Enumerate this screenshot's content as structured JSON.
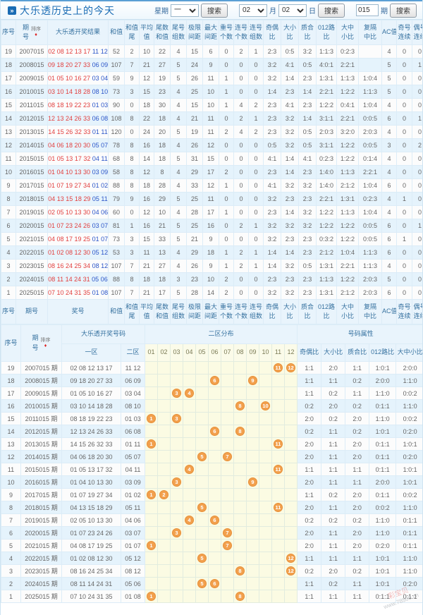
{
  "page": {
    "title": "大乐透历史上的今天",
    "title_icon": "»",
    "watermark": {
      "brand": "彩宝贝",
      "url": "www.78500.cn"
    }
  },
  "toolbar": {
    "week_label": "星期",
    "week_value": "一",
    "search_label": "搜索",
    "month_value": "02",
    "month_label": "月",
    "day_value": "02",
    "day_label": "日",
    "issue_value": "015",
    "issue_label": "期"
  },
  "table1": {
    "sort_label": "排序",
    "sort_icon": "♦",
    "headers": [
      "序号",
      "期|号",
      "大乐透开奖结果",
      "和值",
      "和值|尾",
      "平均|值",
      "尾数|和值",
      "尾号|组数",
      "极限|间距",
      "最大|间距",
      "重号|个数",
      "连号|个数",
      "连号|组数",
      "奇偶|比",
      "大小|比",
      "质合|比",
      "012路|比",
      "大中|小比",
      "复隔|中比",
      "AC值",
      "奇号|连续",
      "偶号|连续"
    ],
    "footer_headers": [
      "序号",
      "期号",
      "奖号",
      "和值",
      "和值|尾",
      "平均|值",
      "尾数|和值",
      "尾号|组数",
      "极限|间距",
      "最大|间距",
      "重号|个数",
      "连号|个数",
      "连号|组数",
      "奇偶|比",
      "大小|比",
      "质合|比",
      "012路|比",
      "大中|小比",
      "复隔|中比",
      "AC值",
      "奇号|连续",
      "偶号|连续"
    ],
    "rows": [
      [
        19,
        "2007015",
        "02 08 12 13 17",
        "11 12",
        52,
        2,
        10,
        22,
        4,
        15,
        6,
        0,
        2,
        1,
        "2:3",
        "0:5",
        "3:2",
        "1:1:3",
        "0:2:3",
        "",
        4,
        0,
        0
      ],
      [
        18,
        "2008015",
        "09 18 20 27 33",
        "06 09",
        107,
        7,
        21,
        27,
        5,
        24,
        9,
        0,
        0,
        0,
        "3:2",
        "4:1",
        "0:5",
        "4:0:1",
        "2:2:1",
        "",
        5,
        0,
        1
      ],
      [
        17,
        "2009015",
        "01 05 10 16 27",
        "03 04",
        59,
        9,
        12,
        19,
        5,
        26,
        11,
        1,
        0,
        0,
        "3:2",
        "1:4",
        "2:3",
        "1:3:1",
        "1:1:3",
        "1:0:4",
        5,
        0,
        0
      ],
      [
        16,
        "2010015",
        "03 10 14 18 28",
        "08 10",
        73,
        3,
        15,
        23,
        4,
        25,
        10,
        1,
        0,
        0,
        "1:4",
        "2:3",
        "1:4",
        "2:2:1",
        "1:2:2",
        "1:1:3",
        5,
        0,
        0
      ],
      [
        15,
        "2011015",
        "08 18 19 22 23",
        "01 03",
        90,
        0,
        18,
        30,
        4,
        15,
        10,
        1,
        4,
        2,
        "2:3",
        "4:1",
        "2:3",
        "1:2:2",
        "0:4:1",
        "1:0:4",
        4,
        0,
        0
      ],
      [
        14,
        "2012015",
        "12 13 24 26 33",
        "06 08",
        108,
        8,
        22,
        18,
        4,
        21,
        11,
        0,
        2,
        1,
        "2:3",
        "3:2",
        "1:4",
        "3:1:1",
        "2:2:1",
        "0:0:5",
        6,
        0,
        1
      ],
      [
        13,
        "2013015",
        "14 15 26 32 33",
        "01 11",
        120,
        0,
        24,
        20,
        5,
        19,
        11,
        2,
        4,
        2,
        "2:3",
        "3:2",
        "0:5",
        "2:0:3",
        "3:2:0",
        "2:0:3",
        4,
        0,
        0
      ],
      [
        12,
        "2014015",
        "04 06 18 20 30",
        "05 07",
        78,
        8,
        16,
        18,
        4,
        26,
        12,
        0,
        0,
        0,
        "0:5",
        "3:2",
        "0:5",
        "3:1:1",
        "1:2:2",
        "0:0:5",
        3,
        0,
        2
      ],
      [
        11,
        "2015015",
        "01 05 13 17 32",
        "04 11",
        68,
        8,
        14,
        18,
        5,
        31,
        15,
        0,
        0,
        0,
        "4:1",
        "1:4",
        "4:1",
        "0:2:3",
        "1:2:2",
        "0:1:4",
        4,
        0,
        0
      ],
      [
        10,
        "2016015",
        "01 04 10 13 30",
        "03 09",
        58,
        8,
        12,
        8,
        4,
        29,
        17,
        2,
        0,
        0,
        "2:3",
        "1:4",
        "2:3",
        "1:4:0",
        "1:1:3",
        "2:2:1",
        4,
        0,
        0
      ],
      [
        9,
        "2017015",
        "01 07 19 27 34",
        "01 02",
        88,
        8,
        18,
        28,
        4,
        33,
        12,
        1,
        0,
        0,
        "4:1",
        "3:2",
        "3:2",
        "1:4:0",
        "2:1:2",
        "1:0:4",
        6,
        0,
        0
      ],
      [
        8,
        "2018015",
        "04 13 15 18 29",
        "05 11",
        79,
        9,
        16,
        29,
        5,
        25,
        11,
        0,
        0,
        0,
        "3:2",
        "2:3",
        "2:3",
        "2:2:1",
        "1:3:1",
        "0:2:3",
        4,
        1,
        0
      ],
      [
        7,
        "2019015",
        "02 05 10 13 30",
        "04 06",
        60,
        0,
        12,
        10,
        4,
        28,
        17,
        1,
        0,
        0,
        "2:3",
        "1:4",
        "3:2",
        "1:2:2",
        "1:1:3",
        "1:0:4",
        4,
        0,
        0
      ],
      [
        6,
        "2020015",
        "01 07 23 24 26",
        "03 07",
        81,
        1,
        16,
        21,
        5,
        25,
        16,
        0,
        2,
        1,
        "3:2",
        "3:2",
        "3:2",
        "1:2:2",
        "1:2:2",
        "0:0:5",
        6,
        0,
        1
      ],
      [
        5,
        "2021015",
        "04 08 17 19 25",
        "01 07",
        73,
        3,
        15,
        33,
        5,
        21,
        9,
        0,
        0,
        0,
        "3:2",
        "2:3",
        "2:3",
        "0:3:2",
        "1:2:2",
        "0:0:5",
        6,
        1,
        0
      ],
      [
        4,
        "2022015",
        "01 02 08 12 30",
        "05 12",
        53,
        3,
        11,
        13,
        4,
        29,
        18,
        1,
        2,
        1,
        "1:4",
        "1:4",
        "2:3",
        "2:1:2",
        "1:0:4",
        "1:1:3",
        6,
        0,
        0
      ],
      [
        3,
        "2023015",
        "08 16 24 25 34",
        "08 12",
        107,
        7,
        21,
        27,
        4,
        26,
        9,
        1,
        2,
        1,
        "1:4",
        "3:2",
        "0:5",
        "1:3:1",
        "2:2:1",
        "1:1:3",
        4,
        0,
        0
      ],
      [
        2,
        "2024015",
        "08 11 14 24 31",
        "05 06",
        88,
        8,
        18,
        18,
        3,
        23,
        10,
        2,
        0,
        0,
        "2:3",
        "2:3",
        "2:3",
        "1:1:3",
        "1:2:2",
        "2:0:3",
        5,
        0,
        0
      ],
      [
        1,
        "2025015",
        "07 10 24 31 35",
        "01 08",
        107,
        7,
        21,
        17,
        5,
        28,
        14,
        2,
        0,
        0,
        "3:2",
        "3:2",
        "2:3",
        "1:3:1",
        "2:1:2",
        "2:0:3",
        6,
        0,
        0
      ]
    ]
  },
  "table2": {
    "sort_label": "排序",
    "sort_icon": "♦",
    "group_headers": {
      "seq": "序号",
      "issue": "期|号",
      "numbers": "大乐透开奖号码",
      "distribution": "二区分布",
      "attributes": "号码属性"
    },
    "sub_headers": {
      "zone1": "一区",
      "zone2": "二区",
      "positions": [
        "01",
        "02",
        "03",
        "04",
        "05",
        "06",
        "07",
        "08",
        "09",
        "10",
        "11",
        "12"
      ],
      "attributes": [
        "奇偶比",
        "大小比",
        "质合比",
        "012路比",
        "大中小比"
      ]
    },
    "rows": [
      {
        "seq": 19,
        "issue": "2007015 期",
        "zone1": "02 08 12 13 17",
        "zone2": "11 12",
        "balls": [
          11,
          12
        ],
        "attrs": [
          "1:1",
          "2:0",
          "1:1",
          "1:0:1",
          "2:0:0"
        ]
      },
      {
        "seq": 18,
        "issue": "2008015 期",
        "zone1": "09 18 20 27 33",
        "zone2": "06 09",
        "balls": [
          6,
          9
        ],
        "attrs": [
          "1:1",
          "1:1",
          "0:2",
          "2:0:0",
          "1:1:0"
        ]
      },
      {
        "seq": 17,
        "issue": "2009015 期",
        "zone1": "01 05 10 16 27",
        "zone2": "03 04",
        "balls": [
          3,
          4
        ],
        "attrs": [
          "1:1",
          "0:2",
          "1:1",
          "1:1:0",
          "0:0:2"
        ]
      },
      {
        "seq": 16,
        "issue": "2010015 期",
        "zone1": "03 10 14 18 28",
        "zone2": "08 10",
        "balls": [
          8,
          10
        ],
        "attrs": [
          "0:2",
          "2:0",
          "0:2",
          "0:1:1",
          "1:1:0"
        ]
      },
      {
        "seq": 15,
        "issue": "2011015 期",
        "zone1": "08 18 19 22 23",
        "zone2": "01 03",
        "balls": [
          1,
          3
        ],
        "attrs": [
          "2:0",
          "0:2",
          "2:0",
          "1:1:0",
          "0:0:2"
        ]
      },
      {
        "seq": 14,
        "issue": "2012015 期",
        "zone1": "12 13 24 26 33",
        "zone2": "06 08",
        "balls": [
          6,
          8
        ],
        "attrs": [
          "0:2",
          "1:1",
          "0:2",
          "1:0:1",
          "0:2:0"
        ]
      },
      {
        "seq": 13,
        "issue": "2013015 期",
        "zone1": "14 15 26 32 33",
        "zone2": "01 11",
        "balls": [
          1,
          11
        ],
        "attrs": [
          "2:0",
          "1:1",
          "2:0",
          "0:1:1",
          "1:0:1"
        ]
      },
      {
        "seq": 12,
        "issue": "2014015 期",
        "zone1": "04 06 18 20 30",
        "zone2": "05 07",
        "balls": [
          5,
          7
        ],
        "attrs": [
          "2:0",
          "1:1",
          "2:0",
          "0:1:1",
          "0:2:0"
        ]
      },
      {
        "seq": 11,
        "issue": "2015015 期",
        "zone1": "01 05 13 17 32",
        "zone2": "04 11",
        "balls": [
          4,
          11
        ],
        "attrs": [
          "1:1",
          "1:1",
          "1:1",
          "0:1:1",
          "1:0:1"
        ]
      },
      {
        "seq": 10,
        "issue": "2016015 期",
        "zone1": "01 04 10 13 30",
        "zone2": "03 09",
        "balls": [
          3,
          9
        ],
        "attrs": [
          "2:0",
          "1:1",
          "1:1",
          "2:0:0",
          "1:0:1"
        ]
      },
      {
        "seq": 9,
        "issue": "2017015 期",
        "zone1": "01 07 19 27 34",
        "zone2": "01 02",
        "balls": [
          1,
          2
        ],
        "attrs": [
          "1:1",
          "0:2",
          "2:0",
          "0:1:1",
          "0:0:2"
        ]
      },
      {
        "seq": 8,
        "issue": "2018015 期",
        "zone1": "04 13 15 18 29",
        "zone2": "05 11",
        "balls": [
          5,
          11
        ],
        "attrs": [
          "2:0",
          "1:1",
          "2:0",
          "0:0:2",
          "1:1:0"
        ]
      },
      {
        "seq": 7,
        "issue": "2019015 期",
        "zone1": "02 05 10 13 30",
        "zone2": "04 06",
        "balls": [
          4,
          6
        ],
        "attrs": [
          "0:2",
          "0:2",
          "0:2",
          "1:1:0",
          "0:1:1"
        ]
      },
      {
        "seq": 6,
        "issue": "2020015 期",
        "zone1": "01 07 23 24 26",
        "zone2": "03 07",
        "balls": [
          3,
          7
        ],
        "attrs": [
          "2:0",
          "1:1",
          "2:0",
          "1:1:0",
          "0:1:1"
        ]
      },
      {
        "seq": 5,
        "issue": "2021015 期",
        "zone1": "04 08 17 19 25",
        "zone2": "01 07",
        "balls": [
          1,
          7
        ],
        "attrs": [
          "2:0",
          "1:1",
          "2:0",
          "0:2:0",
          "0:1:1"
        ]
      },
      {
        "seq": 4,
        "issue": "2022015 期",
        "zone1": "01 02 08 12 30",
        "zone2": "05 12",
        "balls": [
          5,
          12
        ],
        "attrs": [
          "1:1",
          "1:1",
          "1:1",
          "1:0:1",
          "1:1:0"
        ]
      },
      {
        "seq": 3,
        "issue": "2023015 期",
        "zone1": "08 16 24 25 34",
        "zone2": "08 12",
        "balls": [
          8,
          12
        ],
        "attrs": [
          "0:2",
          "2:0",
          "0:2",
          "1:0:1",
          "1:1:0"
        ]
      },
      {
        "seq": 2,
        "issue": "2024015 期",
        "zone1": "08 11 14 24 31",
        "zone2": "05 06",
        "balls": [
          5,
          6
        ],
        "attrs": [
          "1:1",
          "0:2",
          "1:1",
          "1:0:1",
          "0:2:0"
        ]
      },
      {
        "seq": 1,
        "issue": "2025015 期",
        "zone1": "07 10 24 31 35",
        "zone2": "01 08",
        "balls": [
          1,
          8
        ],
        "attrs": [
          "1:1",
          "1:1",
          "1:1",
          "0:1:1",
          "0:1:1"
        ]
      }
    ]
  }
}
